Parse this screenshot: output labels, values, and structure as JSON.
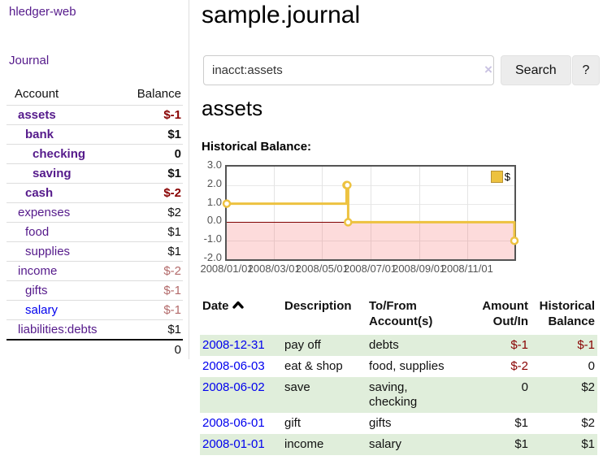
{
  "app": {
    "brand": "hledger-web",
    "nav": {
      "journal": "Journal"
    }
  },
  "page": {
    "title": "sample.journal",
    "heading": "assets",
    "chart_title": "Historical Balance:"
  },
  "search": {
    "value": "inacct:assets",
    "clear_icon": "×",
    "search_button": "Search",
    "help_button": "?"
  },
  "sidebar": {
    "header": {
      "account": "Account",
      "balance": "Balance"
    },
    "accounts": [
      {
        "name": "assets",
        "level": 1,
        "bold": true,
        "link": "visited",
        "balance": "$-1",
        "balance_tone": "neg-strong"
      },
      {
        "name": "bank",
        "level": 2,
        "bold": true,
        "link": "visited",
        "balance": "$1",
        "balance_tone": "pos"
      },
      {
        "name": "checking",
        "level": 3,
        "bold": true,
        "link": "visited",
        "balance": "0",
        "balance_tone": "pos"
      },
      {
        "name": "saving",
        "level": 3,
        "bold": true,
        "link": "visited",
        "balance": "$1",
        "balance_tone": "pos"
      },
      {
        "name": "cash",
        "level": 2,
        "bold": true,
        "link": "visited",
        "balance": "$-2",
        "balance_tone": "neg-strong"
      },
      {
        "name": "expenses",
        "level": 1,
        "bold": false,
        "link": "visited",
        "balance": "$2",
        "balance_tone": "pos"
      },
      {
        "name": "food",
        "level": 2,
        "bold": false,
        "link": "visited",
        "balance": "$1",
        "balance_tone": "pos"
      },
      {
        "name": "supplies",
        "level": 2,
        "bold": false,
        "link": "visited",
        "balance": "$1",
        "balance_tone": "pos"
      },
      {
        "name": "income",
        "level": 1,
        "bold": false,
        "link": "visited",
        "balance": "$-2",
        "balance_tone": "neg-soft"
      },
      {
        "name": "gifts",
        "level": 2,
        "bold": false,
        "link": "visited",
        "balance": "$-1",
        "balance_tone": "neg-soft"
      },
      {
        "name": "salary",
        "level": 2,
        "bold": false,
        "link": "unvisited",
        "balance": "$-1",
        "balance_tone": "neg-soft"
      },
      {
        "name": "liabilities:debts",
        "level": 1,
        "bold": false,
        "link": "visited",
        "balance": "$1",
        "balance_tone": "pos",
        "rule_below": true
      }
    ],
    "total": "0"
  },
  "chart_data": {
    "type": "line",
    "step": "after",
    "title": "Historical Balance",
    "xlim": [
      "2008-01-01",
      "2008-12-31"
    ],
    "ylim": [
      -2,
      3
    ],
    "x_ticks": [
      "2008/01/01",
      "2008/03/01",
      "2008/05/01",
      "2008/07/01",
      "2008/09/01",
      "2008/11/01"
    ],
    "y_ticks": [
      3,
      2,
      1,
      0,
      -1,
      -2
    ],
    "grid": true,
    "legend_position": "top-right",
    "series": [
      {
        "name": "$",
        "color": "#edc240",
        "points": [
          [
            "2008-01-01",
            1
          ],
          [
            "2008-06-01",
            2
          ],
          [
            "2008-06-02",
            2
          ],
          [
            "2008-06-03",
            0
          ],
          [
            "2008-12-31",
            -1
          ]
        ]
      }
    ],
    "negative_region_color": "#fadbdb",
    "zero_line_color": "#800000"
  },
  "register": {
    "columns": [
      {
        "label": "Date",
        "sort": "asc",
        "align": "left"
      },
      {
        "label": "Description",
        "align": "left"
      },
      {
        "label": "To/From Account(s)",
        "align": "left"
      },
      {
        "label": "Amount Out/In",
        "align": "right"
      },
      {
        "label": "Historical Balance",
        "align": "right"
      }
    ],
    "rows": [
      {
        "date": "2008-12-31",
        "description": "pay off",
        "tofrom": "debts",
        "amount": "$-1",
        "amount_tone": "neg",
        "balance": "$-1",
        "balance_tone": "neg",
        "shaded": true
      },
      {
        "date": "2008-06-03",
        "description": "eat & shop",
        "tofrom": "food, supplies",
        "amount": "$-2",
        "amount_tone": "neg",
        "balance": "0",
        "balance_tone": "pos",
        "shaded": false
      },
      {
        "date": "2008-06-02",
        "description": "save",
        "tofrom": "saving,\nchecking",
        "amount": "0",
        "amount_tone": "pos",
        "balance": "$2",
        "balance_tone": "pos",
        "shaded": true
      },
      {
        "date": "2008-06-01",
        "description": "gift",
        "tofrom": "gifts",
        "amount": "$1",
        "amount_tone": "pos",
        "balance": "$2",
        "balance_tone": "pos",
        "shaded": false
      },
      {
        "date": "2008-01-01",
        "description": "income",
        "tofrom": "salary",
        "amount": "$1",
        "amount_tone": "pos",
        "balance": "$1",
        "balance_tone": "pos",
        "shaded": true
      }
    ]
  },
  "colors": {
    "link_visited": "#551a8b",
    "link_unvisited": "#0000ee",
    "negative_strong": "#880000",
    "negative_soft": "#b36a6a",
    "shaded_row": "#e0eedb",
    "chart_line": "#edc240",
    "chart_border": "#545454",
    "axis_text": "#545454",
    "negative_region": "#fadbdb",
    "zero_line": "#800000"
  }
}
